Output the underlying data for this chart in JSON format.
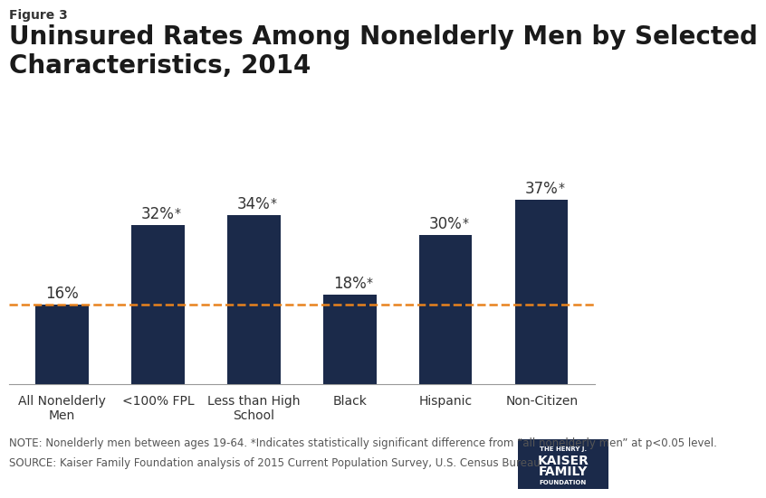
{
  "figure_label": "Figure 3",
  "title": "Uninsured Rates Among Nonelderly Men by Selected\nCharacteristics, 2014",
  "categories": [
    "All Nonelderly\nMen",
    "<100% FPL",
    "Less than High\nSchool",
    "Black",
    "Hispanic",
    "Non-Citizen"
  ],
  "values": [
    16,
    32,
    34,
    18,
    30,
    37
  ],
  "significant": [
    false,
    true,
    true,
    true,
    true,
    true
  ],
  "bar_color": "#1b2a4a",
  "dashed_line_y": 16,
  "dashed_line_color": "#e8821e",
  "ylim": [
    0,
    45
  ],
  "note_line1": "NOTE: Nonelderly men between ages 19-64. *Indicates statistically significant difference from “all nonelderly men” at p<0.05 level.",
  "note_line2": "SOURCE: Kaiser Family Foundation analysis of 2015 Current Population Survey, U.S. Census Bureau.",
  "background_color": "#ffffff",
  "bar_width": 0.55,
  "title_fontsize": 20,
  "figure_label_fontsize": 10,
  "label_fontsize": 10,
  "value_fontsize": 12,
  "note_fontsize": 8.5,
  "logo_color": "#1b2a4a"
}
